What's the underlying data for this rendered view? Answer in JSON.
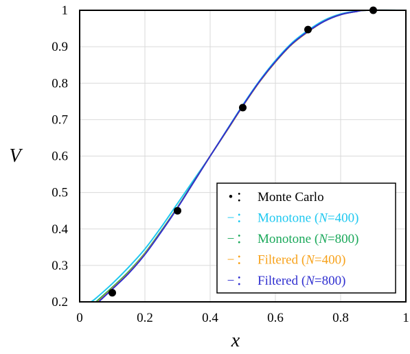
{
  "chart_data": {
    "type": "line",
    "xlabel": "x",
    "ylabel": "V",
    "xlim": [
      0,
      1
    ],
    "ylim": [
      0.2,
      1
    ],
    "x_ticks": [
      "0",
      "0.2",
      "0.4",
      "0.6",
      "0.8",
      "1"
    ],
    "y_ticks": [
      "0.2",
      "0.3",
      "0.4",
      "0.5",
      "0.6",
      "0.7",
      "0.8",
      "0.9",
      "1"
    ],
    "grid": true,
    "legend_position": "bottom-right",
    "points": {
      "name": "Monte Carlo",
      "color": "#000000",
      "x": [
        0.1,
        0.3,
        0.5,
        0.7,
        0.9
      ],
      "y": [
        0.225,
        0.45,
        0.733,
        0.947,
        1.0
      ]
    },
    "series": [
      {
        "label_main": "Monotone (",
        "label_italic": "N",
        "label_tail": "=400)",
        "color": "#1ec8f0",
        "x": [
          0.035,
          0.05,
          0.1,
          0.15,
          0.2,
          0.25,
          0.3,
          0.35,
          0.4,
          0.45,
          0.5,
          0.55,
          0.6,
          0.65,
          0.7,
          0.75,
          0.8,
          0.85,
          0.88,
          1.0
        ],
        "y": [
          0.2,
          0.21,
          0.25,
          0.295,
          0.345,
          0.405,
          0.47,
          0.535,
          0.6,
          0.67,
          0.74,
          0.805,
          0.862,
          0.91,
          0.945,
          0.973,
          0.99,
          0.998,
          1.0,
          1.0
        ]
      },
      {
        "label_main": "Monotone (",
        "label_italic": "N",
        "label_tail": "=800)",
        "color": "#1aa85a",
        "x": [
          0.05,
          0.1,
          0.15,
          0.2,
          0.25,
          0.3,
          0.35,
          0.4,
          0.45,
          0.5,
          0.55,
          0.6,
          0.65,
          0.7,
          0.75,
          0.8,
          0.85,
          0.88,
          1.0
        ],
        "y": [
          0.2,
          0.24,
          0.283,
          0.334,
          0.395,
          0.46,
          0.53,
          0.6,
          0.668,
          0.737,
          0.802,
          0.858,
          0.906,
          0.941,
          0.97,
          0.988,
          0.997,
          1.0,
          1.0
        ]
      },
      {
        "label_main": "Filtered (",
        "label_italic": "N",
        "label_tail": "=400)",
        "color": "#f7a21b",
        "x": [
          0.055,
          0.1,
          0.15,
          0.2,
          0.25,
          0.3,
          0.35,
          0.4,
          0.45,
          0.5,
          0.55,
          0.6,
          0.65,
          0.7,
          0.75,
          0.8,
          0.85,
          0.88,
          1.0
        ],
        "y": [
          0.2,
          0.237,
          0.28,
          0.332,
          0.393,
          0.459,
          0.529,
          0.6,
          0.668,
          0.737,
          0.802,
          0.858,
          0.906,
          0.941,
          0.97,
          0.988,
          0.997,
          1.0,
          1.0
        ]
      },
      {
        "label_main": "Filtered (",
        "label_italic": "N",
        "label_tail": "=800)",
        "color": "#2f2fd0",
        "x": [
          0.058,
          0.1,
          0.15,
          0.2,
          0.25,
          0.3,
          0.35,
          0.4,
          0.45,
          0.5,
          0.55,
          0.6,
          0.65,
          0.7,
          0.75,
          0.8,
          0.85,
          0.88,
          1.0
        ],
        "y": [
          0.2,
          0.235,
          0.278,
          0.33,
          0.392,
          0.458,
          0.529,
          0.6,
          0.669,
          0.738,
          0.803,
          0.859,
          0.907,
          0.942,
          0.97,
          0.988,
          0.997,
          1.0,
          1.0
        ]
      }
    ],
    "legend": {
      "separator": "：",
      "marker_dot": "•",
      "marker_dash": "−",
      "points_label": "Monte Carlo"
    }
  }
}
